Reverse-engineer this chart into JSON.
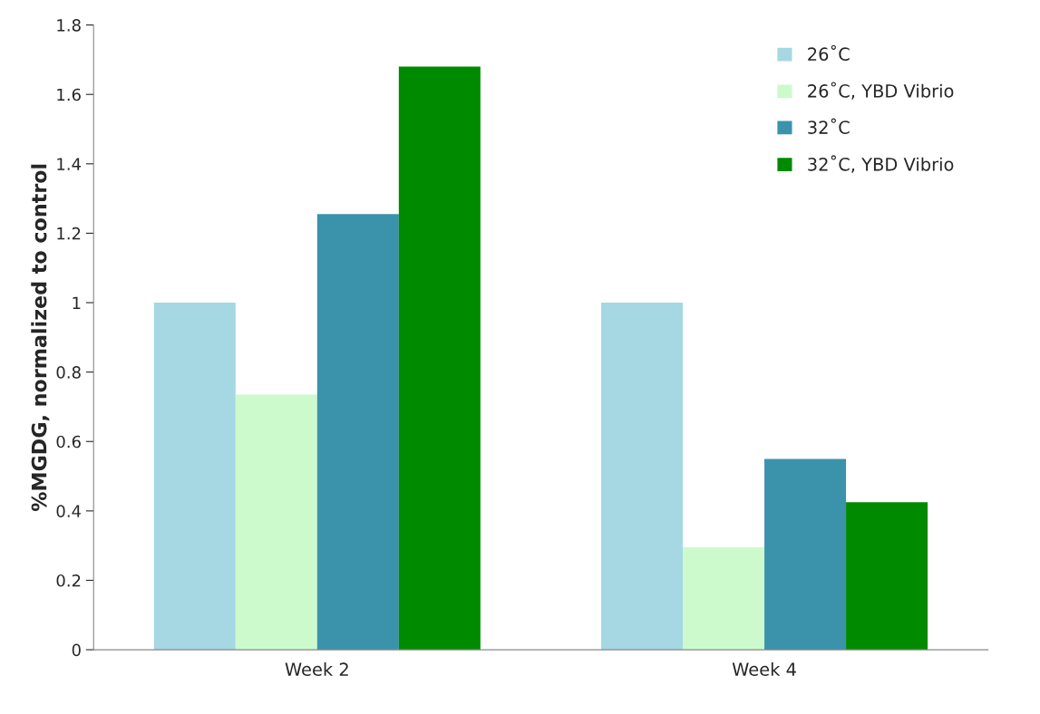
{
  "chart_data": {
    "type": "bar",
    "ylabel": "%MGDG, normalized to control",
    "categories": [
      "Week 2",
      "Week 4"
    ],
    "series": [
      {
        "name": "26˚C",
        "color": "#a5d8e3",
        "values": [
          1.0,
          1.0
        ]
      },
      {
        "name": "26˚C, YBD Vibrio",
        "color": "#ccfacc",
        "values": [
          0.735,
          0.295
        ]
      },
      {
        "name": "32˚C",
        "color": "#3a93ab",
        "values": [
          1.255,
          0.55
        ]
      },
      {
        "name": "32˚C, YBD Vibrio",
        "color": "#008a00",
        "values": [
          1.68,
          0.425
        ]
      }
    ],
    "ylim": [
      0,
      1.8
    ],
    "yticks": [
      0,
      0.2,
      0.4,
      0.6,
      0.8,
      1,
      1.2,
      1.4,
      1.6,
      1.8
    ],
    "grid": false,
    "legend": "top right"
  }
}
